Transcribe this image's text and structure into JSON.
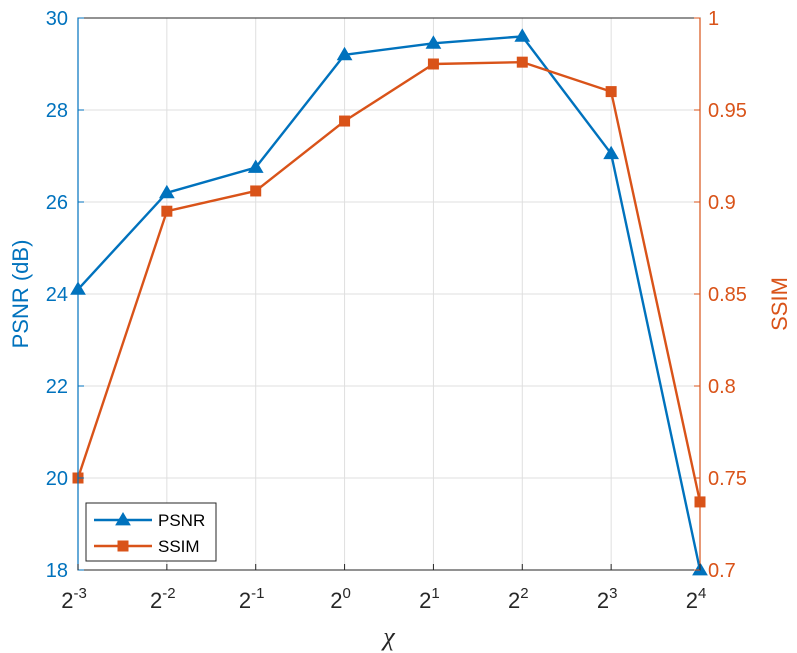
{
  "chart_data": {
    "type": "line",
    "x_categories": [
      {
        "base": "2",
        "exp": "-3"
      },
      {
        "base": "2",
        "exp": "-2"
      },
      {
        "base": "2",
        "exp": "-1"
      },
      {
        "base": "2",
        "exp": "0"
      },
      {
        "base": "2",
        "exp": "1"
      },
      {
        "base": "2",
        "exp": "2"
      },
      {
        "base": "2",
        "exp": "3"
      },
      {
        "base": "2",
        "exp": "4"
      }
    ],
    "xlabel": "χ",
    "y_left": {
      "label": "PSNR (dB)",
      "lim": [
        18,
        30
      ],
      "ticks": [
        "18",
        "20",
        "22",
        "24",
        "26",
        "28",
        "30"
      ],
      "tick_values": [
        18,
        20,
        22,
        24,
        26,
        28,
        30
      ],
      "color": "#0072BD"
    },
    "y_right": {
      "label": "SSIM",
      "lim": [
        0.7,
        1.0
      ],
      "ticks": [
        "0.7",
        "0.75",
        "0.8",
        "0.85",
        "0.9",
        "0.95",
        "1"
      ],
      "tick_values": [
        0.7,
        0.75,
        0.8,
        0.85,
        0.9,
        0.95,
        1.0
      ],
      "color": "#D95319"
    },
    "series": [
      {
        "name": "PSNR",
        "axis": "left",
        "marker": "triangle",
        "color": "#0072BD",
        "values": [
          24.1,
          26.2,
          26.75,
          29.2,
          29.45,
          29.6,
          27.05,
          18.0
        ]
      },
      {
        "name": "SSIM",
        "axis": "right",
        "marker": "square",
        "color": "#D95319",
        "values": [
          0.75,
          0.895,
          0.906,
          0.944,
          0.975,
          0.976,
          0.96,
          0.737
        ]
      }
    ],
    "grid": true,
    "legend_position": "bottom-left"
  }
}
